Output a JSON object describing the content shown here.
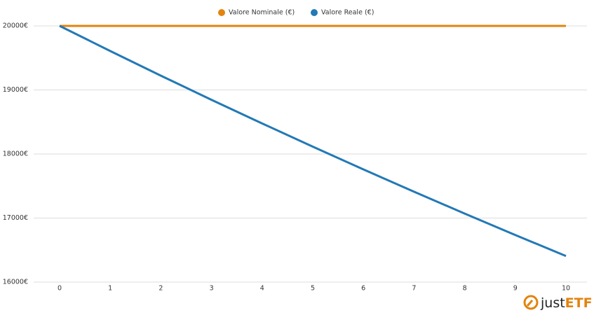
{
  "chart_data": {
    "type": "line",
    "x": [
      0,
      1,
      2,
      3,
      4,
      5,
      6,
      7,
      8,
      9,
      10
    ],
    "series": [
      {
        "name": "Valore Nominale (€)",
        "color": "#e2840f",
        "values": [
          20000,
          20000,
          20000,
          20000,
          20000,
          20000,
          20000,
          20000,
          20000,
          20000,
          20000
        ]
      },
      {
        "name": "Valore Reale (€)",
        "color": "#2379b6",
        "values": [
          20000,
          19608,
          19223,
          18846,
          18477,
          18115,
          17759,
          17411,
          17070,
          16735,
          16407
        ]
      }
    ],
    "xlim": [
      0,
      10
    ],
    "xticks": [
      0,
      1,
      2,
      3,
      4,
      5,
      6,
      7,
      8,
      9,
      10
    ],
    "ylim": [
      16000,
      20000
    ],
    "yticks": [
      {
        "value": 16000,
        "label": "16000€"
      },
      {
        "value": 17000,
        "label": "17000€"
      },
      {
        "value": 18000,
        "label": "18000€"
      },
      {
        "value": 19000,
        "label": "19000€"
      },
      {
        "value": 20000,
        "label": "20000€"
      }
    ],
    "grid": true,
    "legend": "top",
    "watermark": {
      "prefix": "just",
      "suffix": "ETF"
    }
  }
}
